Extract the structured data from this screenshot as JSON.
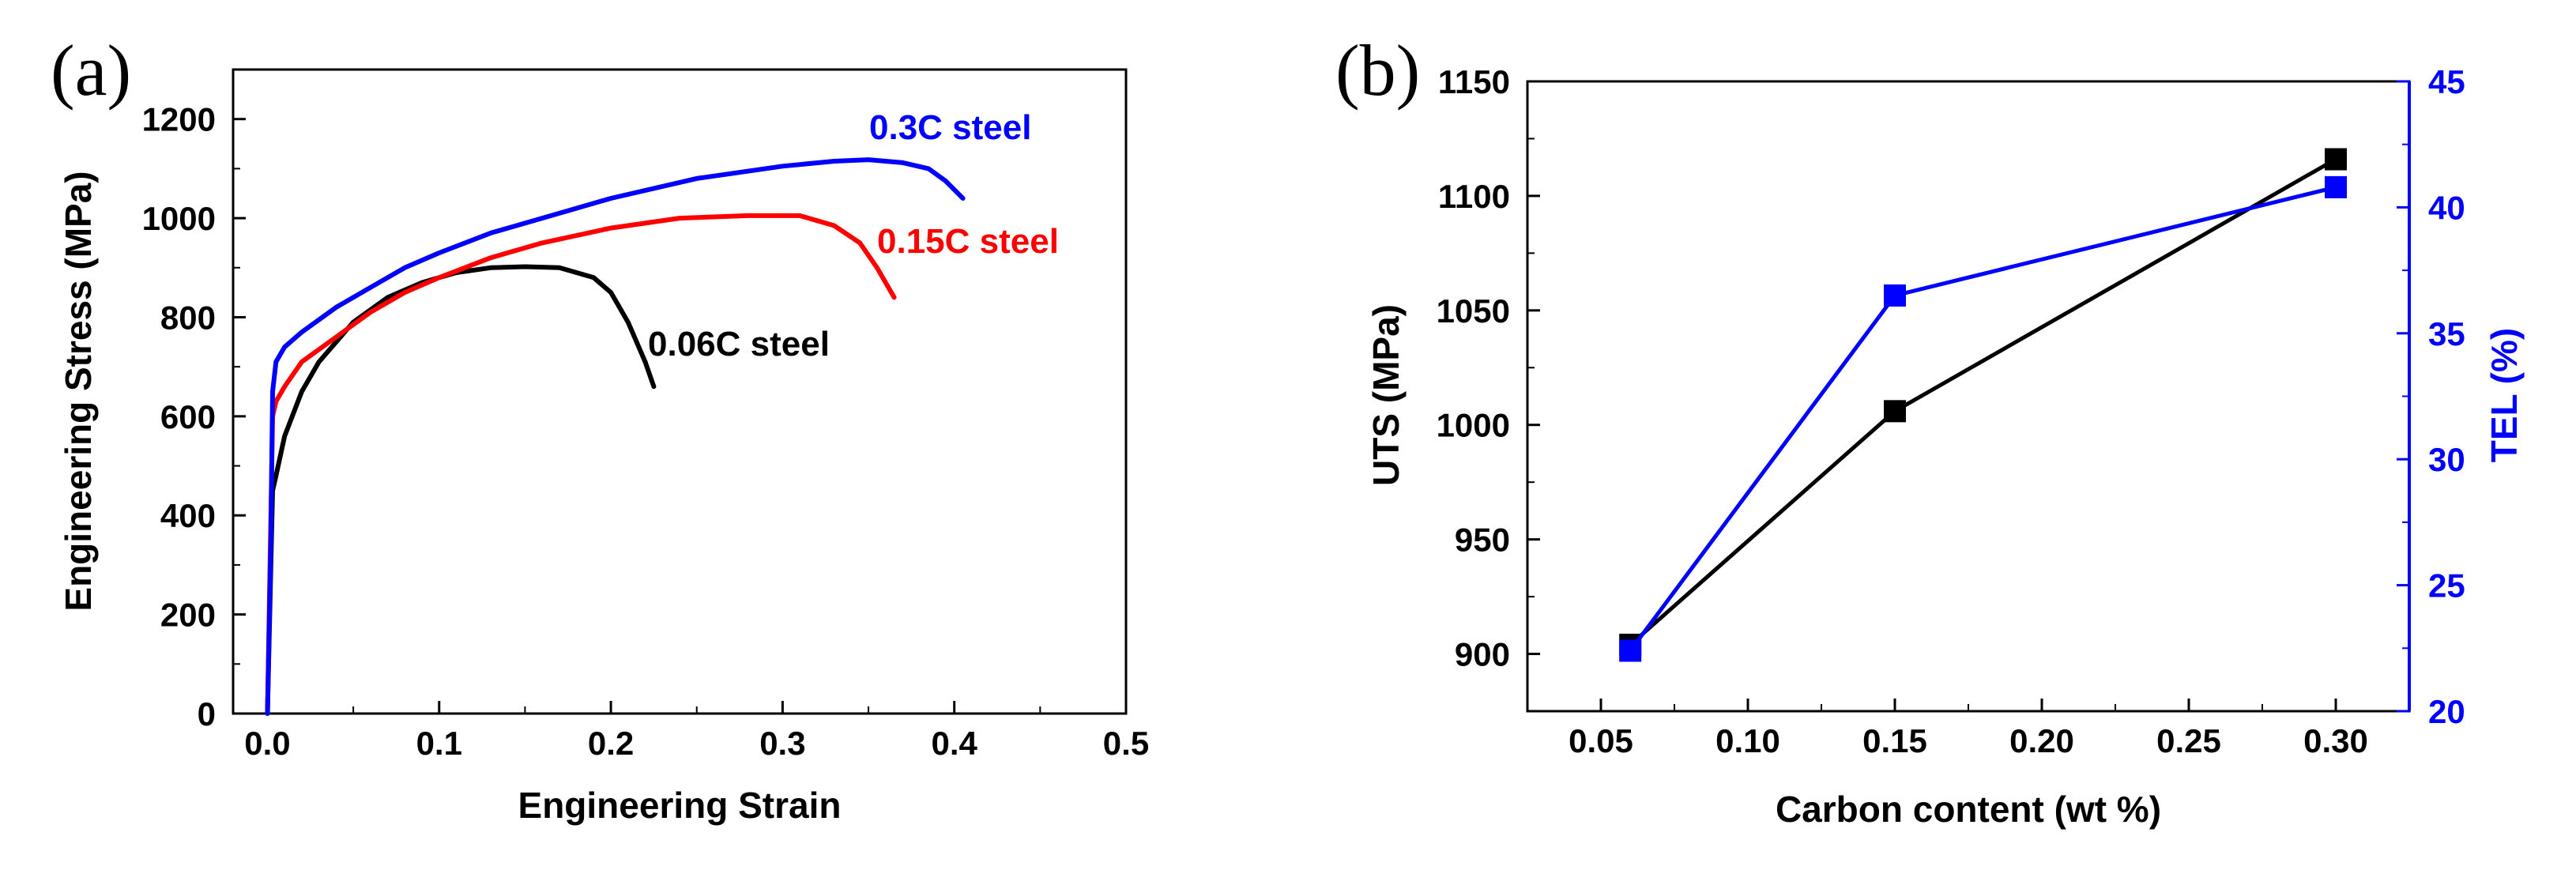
{
  "chart_data": [
    {
      "type": "line",
      "panel_label": "(a)",
      "title": "",
      "xlabel": "Engineering Strain",
      "ylabel": "Engineering Stress (MPa)",
      "xlim": [
        -0.02,
        0.5
      ],
      "ylim": [
        0,
        1300
      ],
      "x_ticks": [
        0.0,
        0.1,
        0.2,
        0.3,
        0.4,
        0.5
      ],
      "x_tick_labels": [
        "0.0",
        "0.1",
        "0.2",
        "0.3",
        "0.4",
        "0.5"
      ],
      "y_ticks": [
        0,
        200,
        400,
        600,
        800,
        1000,
        1200
      ],
      "y_tick_labels": [
        "0",
        "200",
        "400",
        "600",
        "800",
        "1000",
        "1200"
      ],
      "series": [
        {
          "name": "0.06C steel",
          "color": "#000000",
          "x": [
            0,
            0.002,
            0.003,
            0.005,
            0.01,
            0.02,
            0.03,
            0.05,
            0.07,
            0.09,
            0.11,
            0.13,
            0.15,
            0.17,
            0.19,
            0.2,
            0.21,
            0.22,
            0.225
          ],
          "y": [
            0,
            300,
            450,
            480,
            560,
            650,
            710,
            790,
            840,
            870,
            890,
            900,
            902,
            900,
            880,
            850,
            790,
            710,
            660
          ]
        },
        {
          "name": "0.15C steel",
          "color": "#ff0000",
          "x": [
            0,
            0.002,
            0.003,
            0.005,
            0.01,
            0.02,
            0.04,
            0.06,
            0.08,
            0.1,
            0.13,
            0.16,
            0.2,
            0.24,
            0.28,
            0.31,
            0.33,
            0.345,
            0.355,
            0.365
          ],
          "y": [
            0,
            400,
            600,
            630,
            660,
            710,
            760,
            810,
            850,
            880,
            920,
            950,
            980,
            1000,
            1005,
            1005,
            985,
            950,
            900,
            840
          ]
        },
        {
          "name": "0.3C steel",
          "color": "#0000ff",
          "x": [
            0,
            0.002,
            0.003,
            0.005,
            0.01,
            0.02,
            0.04,
            0.06,
            0.08,
            0.1,
            0.13,
            0.16,
            0.2,
            0.25,
            0.3,
            0.33,
            0.35,
            0.37,
            0.385,
            0.395,
            0.405
          ],
          "y": [
            0,
            350,
            650,
            710,
            740,
            770,
            820,
            860,
            900,
            930,
            970,
            1000,
            1040,
            1080,
            1105,
            1115,
            1118,
            1112,
            1100,
            1075,
            1040
          ]
        }
      ],
      "annotations": [
        "0.3C steel",
        "0.15C steel",
        "0.06C steel"
      ]
    },
    {
      "type": "line",
      "panel_label": "(b)",
      "title": "",
      "xlabel": "Carbon content (wt %)",
      "ylabel": "UTS (MPa)",
      "y2label": "TEL (%)",
      "xlim": [
        0.025,
        0.325
      ],
      "ylim": [
        875,
        1150
      ],
      "y2lim": [
        20,
        45
      ],
      "x_ticks": [
        0.05,
        0.1,
        0.15,
        0.2,
        0.25,
        0.3
      ],
      "x_tick_labels": [
        "0.05",
        "0.10",
        "0.15",
        "0.20",
        "0.25",
        "0.30"
      ],
      "y_ticks": [
        900,
        950,
        1000,
        1050,
        1100,
        1150
      ],
      "y_tick_labels": [
        "900",
        "950",
        "1000",
        "1050",
        "1100",
        "1150"
      ],
      "y2_ticks": [
        20,
        25,
        30,
        35,
        40,
        45
      ],
      "y2_tick_labels": [
        "20",
        "25",
        "30",
        "35",
        "40",
        "45"
      ],
      "series": [
        {
          "name": "UTS",
          "axis": "left",
          "color": "#000000",
          "x": [
            0.06,
            0.15,
            0.3
          ],
          "y": [
            904,
            1006,
            1116
          ]
        },
        {
          "name": "TEL",
          "axis": "right",
          "color": "#0000ff",
          "x": [
            0.06,
            0.15,
            0.3
          ],
          "y": [
            22.4,
            36.5,
            40.8
          ]
        }
      ]
    }
  ]
}
